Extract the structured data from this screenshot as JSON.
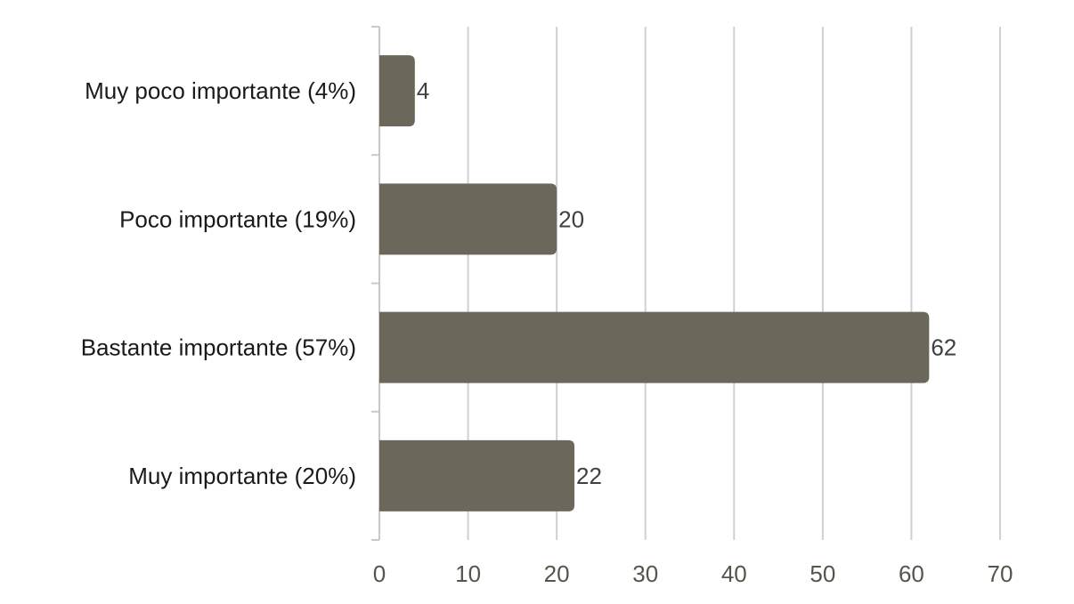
{
  "chart_data": {
    "type": "bar",
    "orientation": "horizontal",
    "categories": [
      "Muy poco importante (4%)",
      "Poco importante (19%)",
      "Bastante importante (57%)",
      "Muy importante (20%)"
    ],
    "values": [
      4,
      20,
      62,
      22
    ],
    "data_labels": [
      "4",
      "20",
      "62",
      "22"
    ],
    "xlim": [
      0,
      70
    ],
    "xticks": [
      0,
      10,
      20,
      30,
      40,
      50,
      60,
      70
    ],
    "xtick_labels": [
      "0",
      "10",
      "20",
      "30",
      "40",
      "50",
      "60",
      "70"
    ],
    "title": "",
    "xlabel": "",
    "ylabel": "",
    "grid": "vertical",
    "legend": "none"
  },
  "colors": {
    "bar": "#6b685b",
    "grid": "#d0d0d0",
    "axis": "#c8c8c8"
  }
}
